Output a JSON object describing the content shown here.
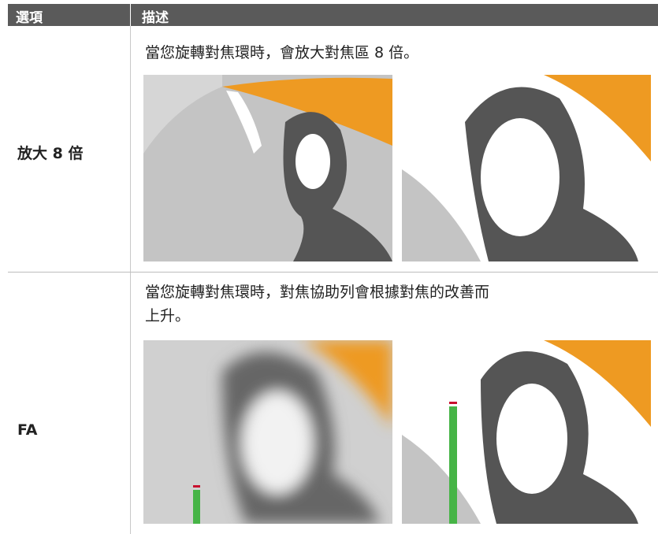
{
  "header": {
    "columns": [
      "選項",
      "描述"
    ]
  },
  "table": {
    "rows": [
      [
        "放大 8 倍",
        "當您旋轉對焦環時，會放大對焦區 8 倍。"
      ],
      [
        "FA",
        "當您旋轉對焦環時，對焦協助列會根據對焦的改善而上升。"
      ]
    ]
  }
}
